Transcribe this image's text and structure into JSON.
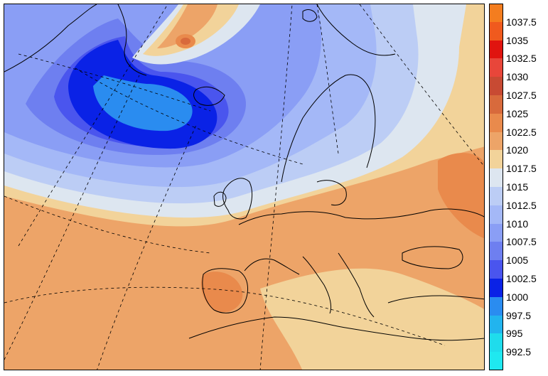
{
  "legend": {
    "levels": [
      {
        "label": "1037.5",
        "color": "#f47d1f"
      },
      {
        "label": "1035",
        "color": "#f05a1e"
      },
      {
        "label": "1032.5",
        "color": "#e0140f"
      },
      {
        "label": "1030",
        "color": "#e8463a"
      },
      {
        "label": "1027.5",
        "color": "#c84a33"
      },
      {
        "label": "1025",
        "color": "#d86a3c"
      },
      {
        "label": "1022.5",
        "color": "#e98a4c"
      },
      {
        "label": "1020",
        "color": "#eda468"
      },
      {
        "label": "1017.5",
        "color": "#f2d39a"
      },
      {
        "label": "1015",
        "color": "#dde6f0"
      },
      {
        "label": "1012.5",
        "color": "#bccdf5"
      },
      {
        "label": "1010",
        "color": "#a4b8f7"
      },
      {
        "label": "1007.5",
        "color": "#8a9ef5"
      },
      {
        "label": "1005",
        "color": "#6e7ff0"
      },
      {
        "label": "1002.5",
        "color": "#4a55ee"
      },
      {
        "label": "1000",
        "color": "#0a22e6"
      },
      {
        "label": "997.5",
        "color": "#2a8cf0"
      },
      {
        "label": "995",
        "color": "#22b4ee"
      },
      {
        "label": "992.5",
        "color": "#1fdcec"
      }
    ]
  },
  "colors": {
    "coastline": "#000000",
    "graticule": "#000000"
  }
}
